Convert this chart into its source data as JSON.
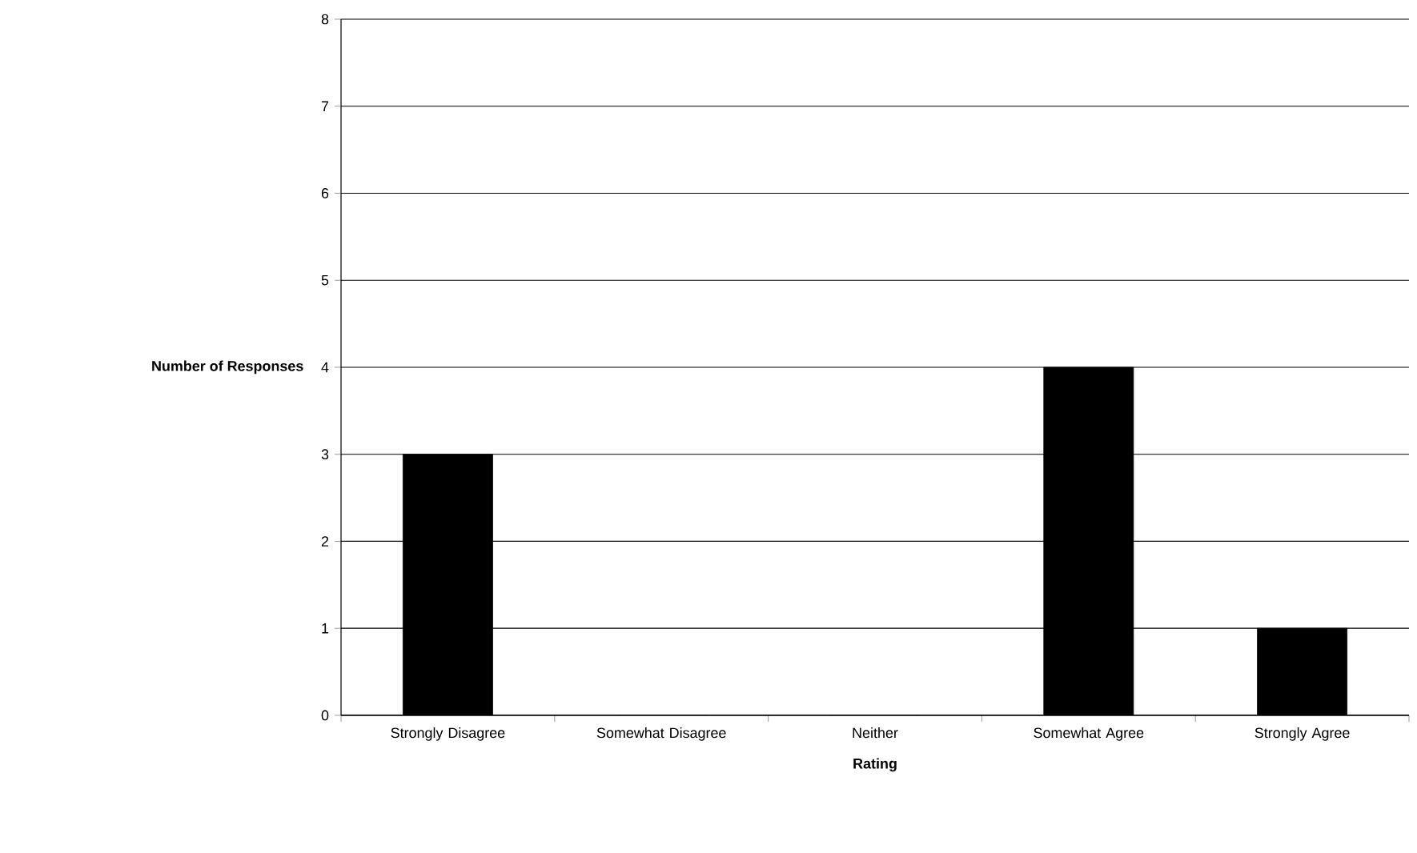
{
  "chart_data": {
    "type": "bar",
    "xlabel": "Rating",
    "ylabel": "Number of Responses",
    "categories": [
      "Strongly Disagree",
      "Somewhat Disagree",
      "Neither",
      "Somewhat Agree",
      "Strongly Agree"
    ],
    "values": [
      3,
      0,
      0,
      4,
      1
    ],
    "color": "#000000",
    "ylim": [
      0,
      8
    ],
    "yticks": [
      0,
      1,
      2,
      3,
      4,
      5,
      6,
      7,
      8
    ],
    "grid": "y"
  }
}
